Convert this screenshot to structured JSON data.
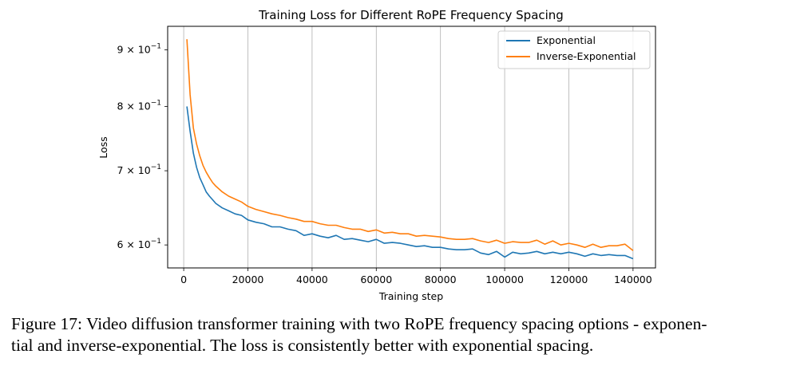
{
  "chart_data": {
    "type": "line",
    "title": "Training Loss for Different RoPE Frequency Spacing",
    "xlabel": "Training step",
    "ylabel": "Loss",
    "yscale": "log",
    "xlim": [
      -5000,
      147000
    ],
    "ylim": [
      0.572,
      0.945
    ],
    "grid": "vertical",
    "legend_position": "top-right",
    "x_ticks": [
      0,
      20000,
      40000,
      60000,
      80000,
      100000,
      120000,
      140000
    ],
    "x_tick_labels": [
      "0",
      "20000",
      "40000",
      "60000",
      "80000",
      "100000",
      "120000",
      "140000"
    ],
    "y_ticks": [
      0.6,
      0.7,
      0.8,
      0.9
    ],
    "y_tick_labels": [
      {
        "base": "6 × 10",
        "exp": "−1"
      },
      {
        "base": "7 × 10",
        "exp": "−1"
      },
      {
        "base": "8 × 10",
        "exp": "−1"
      },
      {
        "base": "9 × 10",
        "exp": "−1"
      }
    ],
    "x": [
      1000,
      2000,
      3000,
      4000,
      5000,
      6000,
      7000,
      8000,
      9000,
      10000,
      12000,
      14000,
      16000,
      18000,
      20000,
      22500,
      25000,
      27500,
      30000,
      32500,
      35000,
      37500,
      40000,
      42500,
      45000,
      47500,
      50000,
      52500,
      55000,
      57500,
      60000,
      62500,
      65000,
      67500,
      70000,
      72500,
      75000,
      77500,
      80000,
      82500,
      85000,
      87500,
      90000,
      92500,
      95000,
      97500,
      100000,
      102500,
      105000,
      107500,
      110000,
      112500,
      115000,
      117500,
      120000,
      122500,
      125000,
      127500,
      130000,
      132500,
      135000,
      137500,
      140000
    ],
    "series": [
      {
        "name": "Exponential",
        "color": "#1f77b4",
        "values": [
          0.8,
          0.76,
          0.726,
          0.705,
          0.69,
          0.68,
          0.67,
          0.664,
          0.659,
          0.654,
          0.648,
          0.644,
          0.64,
          0.638,
          0.632,
          0.629,
          0.627,
          0.623,
          0.623,
          0.62,
          0.618,
          0.612,
          0.614,
          0.611,
          0.609,
          0.612,
          0.607,
          0.608,
          0.606,
          0.604,
          0.607,
          0.602,
          0.603,
          0.602,
          0.6,
          0.598,
          0.599,
          0.597,
          0.597,
          0.595,
          0.594,
          0.594,
          0.595,
          0.59,
          0.588,
          0.592,
          0.585,
          0.591,
          0.589,
          0.59,
          0.592,
          0.589,
          0.591,
          0.589,
          0.591,
          0.589,
          0.586,
          0.589,
          0.587,
          0.588,
          0.587,
          0.587,
          0.583
        ]
      },
      {
        "name": "Inverse-Exponential",
        "color": "#ff7f0e",
        "values": [
          0.92,
          0.82,
          0.765,
          0.74,
          0.722,
          0.708,
          0.698,
          0.69,
          0.683,
          0.678,
          0.67,
          0.664,
          0.66,
          0.656,
          0.65,
          0.646,
          0.643,
          0.64,
          0.638,
          0.635,
          0.633,
          0.63,
          0.63,
          0.627,
          0.625,
          0.625,
          0.622,
          0.62,
          0.62,
          0.617,
          0.619,
          0.615,
          0.616,
          0.614,
          0.614,
          0.611,
          0.612,
          0.611,
          0.61,
          0.608,
          0.607,
          0.607,
          0.608,
          0.605,
          0.603,
          0.606,
          0.602,
          0.604,
          0.603,
          0.603,
          0.606,
          0.601,
          0.605,
          0.6,
          0.602,
          0.6,
          0.597,
          0.601,
          0.597,
          0.599,
          0.599,
          0.601,
          0.593
        ]
      }
    ]
  },
  "caption": {
    "line1": "Figure 17: Video diffusion transformer training with two RoPE frequency spacing options - exponen-",
    "line2": "tial and inverse-exponential. The loss is consistently better with exponential spacing."
  }
}
